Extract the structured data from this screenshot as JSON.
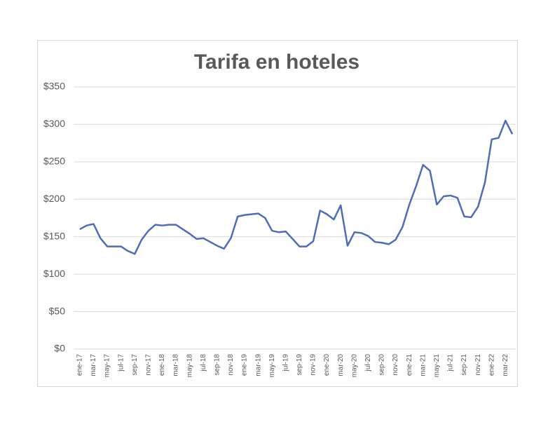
{
  "chart_data": {
    "type": "line",
    "title": "Tarifa en hoteles",
    "categories": [
      "ene-17",
      null,
      "mar-17",
      null,
      "may-17",
      null,
      "jul-17",
      null,
      "sep-17",
      null,
      "nov-17",
      null,
      "ene-18",
      null,
      "mar-18",
      null,
      "may-18",
      null,
      "jul-18",
      null,
      "sep-18",
      null,
      "nov-18",
      null,
      "ene-19",
      null,
      "mar-19",
      null,
      "may-19",
      null,
      "jul-19",
      null,
      "sep-19",
      null,
      "nov-19",
      null,
      "ene-20",
      null,
      "mar-20",
      null,
      "may-20",
      null,
      "jul-20",
      null,
      "sep-20",
      null,
      "nov-20",
      null,
      "ene-21",
      null,
      "mar-21",
      null,
      "may-21",
      null,
      "jul-21",
      null,
      "sep-21",
      null,
      "nov-21",
      null,
      "ene-22",
      null,
      "mar-22",
      null
    ],
    "series": [
      {
        "name": "Tarifa",
        "color": "#4e6db8",
        "values": [
          160,
          165,
          167,
          148,
          137,
          137,
          137,
          131,
          127,
          146,
          158,
          166,
          165,
          166,
          166,
          160,
          154,
          147,
          148,
          143,
          138,
          134,
          148,
          177,
          179,
          180,
          181,
          175,
          158,
          156,
          157,
          147,
          137,
          137,
          144,
          185,
          180,
          173,
          192,
          138,
          156,
          155,
          151,
          143,
          142,
          140,
          146,
          163,
          193,
          218,
          246,
          238,
          193,
          204,
          205,
          202,
          177,
          176,
          190,
          222,
          280,
          282,
          305,
          287
        ]
      }
    ],
    "ylim": [
      0,
      350
    ],
    "yticks": [
      {
        "value": 0,
        "label": "$0"
      },
      {
        "value": 50,
        "label": "$50"
      },
      {
        "value": 100,
        "label": "$100"
      },
      {
        "value": 150,
        "label": "$150"
      },
      {
        "value": 200,
        "label": "$200"
      },
      {
        "value": 250,
        "label": "$250"
      },
      {
        "value": 300,
        "label": "$300"
      },
      {
        "value": 350,
        "label": "$350"
      }
    ],
    "grid": true
  }
}
